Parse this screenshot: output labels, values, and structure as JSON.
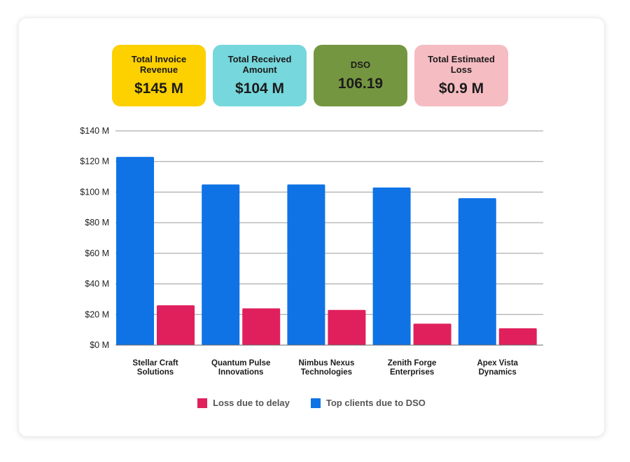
{
  "kpis": [
    {
      "label": "Total Invoice Revenue",
      "value": "$145 M"
    },
    {
      "label": "Total Received Amount",
      "value": "$104 M"
    },
    {
      "label": "DSO",
      "value": "106.19"
    },
    {
      "label": "Total Estimated Loss",
      "value": "$0.9 M"
    }
  ],
  "colors": {
    "kpi_revenue": "#fdd000",
    "kpi_received": "#76d7dc",
    "kpi_dso": "#759640",
    "kpi_loss": "#f5bcc2",
    "series_dso": "#0f73e5",
    "series_loss": "#e0205c"
  },
  "chart_data": {
    "type": "bar",
    "categories": [
      [
        "Stellar Craft",
        "Solutions"
      ],
      [
        "Quantum Pulse",
        "Innovations"
      ],
      [
        "Nimbus Nexus",
        "Technologies"
      ],
      [
        "Zenith Forge",
        "Enterprises"
      ],
      [
        "Apex Vista",
        "Dynamics"
      ]
    ],
    "series": [
      {
        "name": "Top clients due to DSO",
        "values": [
          123,
          105,
          105,
          103,
          96
        ]
      },
      {
        "name": "Loss due to delay",
        "values": [
          26,
          24,
          23,
          14,
          11
        ]
      }
    ],
    "ylim": [
      0,
      140
    ],
    "yticks": [
      0,
      20,
      40,
      60,
      80,
      100,
      120,
      140
    ],
    "ytick_labels": [
      "$0 M",
      "$20 M",
      "$40 M",
      "$60 M",
      "$80 M",
      "$100 M",
      "$120 M",
      "$140 M"
    ],
    "grid": true,
    "legend_position": "bottom-center",
    "legend": [
      "Loss due to delay",
      "Top clients due to DSO"
    ]
  }
}
